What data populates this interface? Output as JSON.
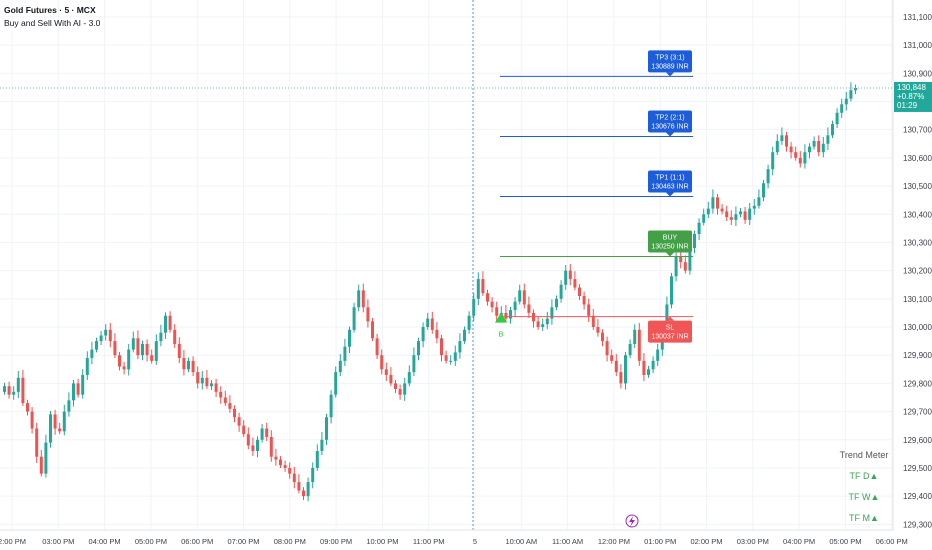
{
  "header": {
    "title": "Gold Futures · 5 · MCX",
    "indicator": "Buy and Sell With AI - 3.0"
  },
  "price_tag": {
    "price": "130,848",
    "change": "+0.87%",
    "countdown": "01:29"
  },
  "trend_meter": {
    "title": "Trend Meter",
    "rows": [
      "TF D▲",
      "TF W▲",
      "TF M▲"
    ]
  },
  "colors": {
    "up": "#26a69a",
    "down": "#ef5350",
    "tp": "#1e5dd9",
    "buy": "#43a047",
    "sl": "#f05656",
    "grid": "#f0f3fa"
  },
  "chart_data": {
    "type": "candlestick",
    "y_ticks": [
      131100,
      131000,
      130900,
      130800,
      130700,
      130600,
      130500,
      130400,
      130300,
      130200,
      130100,
      130000,
      129900,
      129800,
      129700,
      129600,
      129500,
      129400,
      129300
    ],
    "ylim": [
      129280,
      131160
    ],
    "x_ticks": [
      "2:00 PM",
      "03:00 PM",
      "04:00 PM",
      "05:00 PM",
      "06:00 PM",
      "07:00 PM",
      "08:00 PM",
      "09:00 PM",
      "10:00 PM",
      "11:00 PM",
      "5",
      "10:00 AM",
      "11:00 AM",
      "12:00 PM",
      "01:00 PM",
      "02:00 PM",
      "03:00 PM",
      "04:00 PM",
      "05:00 PM",
      "06:00 PM"
    ],
    "levels": [
      {
        "name": "TP3",
        "label": "TP3 (3:1)",
        "price_label": "130889 INR",
        "value": 130889,
        "kind": "tp"
      },
      {
        "name": "TP2",
        "label": "TP2 (2:1)",
        "price_label": "130676 INR",
        "value": 130676,
        "kind": "tp"
      },
      {
        "name": "TP1",
        "label": "TP1 (1:1)",
        "price_label": "130463 INR",
        "value": 130463,
        "kind": "tp"
      },
      {
        "name": "BUY",
        "label": "BUY",
        "price_label": "130250 INR",
        "value": 130250,
        "kind": "buy"
      },
      {
        "name": "SL",
        "label": "SL",
        "price_label": "130037 INR",
        "value": 130037,
        "kind": "sl"
      }
    ],
    "signal": {
      "label": "B",
      "value": 130030
    },
    "current_price": 130848,
    "closes": [
      129790,
      129760,
      129770,
      129820,
      129730,
      129700,
      129640,
      129540,
      129480,
      129590,
      129690,
      129640,
      129630,
      129700,
      129740,
      129800,
      129760,
      129830,
      129890,
      129920,
      129950,
      129970,
      129990,
      129950,
      129900,
      129860,
      129850,
      129920,
      129960,
      129900,
      129940,
      129900,
      129880,
      129950,
      129980,
      130040,
      129990,
      129940,
      129890,
      129850,
      129880,
      129840,
      129800,
      129820,
      129790,
      129800,
      129770,
      129750,
      129730,
      129710,
      129680,
      129650,
      129620,
      129580,
      129560,
      129600,
      129640,
      129610,
      129540,
      129530,
      129510,
      129500,
      129480,
      129450,
      129420,
      129400,
      129450,
      129500,
      129560,
      129600,
      129680,
      129760,
      129840,
      129880,
      129930,
      129990,
      130070,
      130130,
      130070,
      130020,
      129960,
      129900,
      129850,
      129830,
      129800,
      129780,
      129760,
      129800,
      129840,
      129900,
      129950,
      130000,
      130030,
      129990,
      129960,
      129900,
      129880,
      129880,
      129910,
      129950,
      129990,
      130040,
      130100,
      130170,
      130120,
      130090,
      130070,
      130040,
      130050,
      130030,
      130060,
      130090,
      130130,
      130080,
      130050,
      130020,
      130000,
      130010,
      130030,
      130070,
      130100,
      130150,
      130200,
      130170,
      130140,
      130110,
      130080,
      130040,
      130000,
      129980,
      129950,
      129900,
      129880,
      129840,
      129800,
      129900,
      129940,
      129990,
      129880,
      129830,
      129850,
      129880,
      129920,
      129970,
      130080,
      130180,
      130250,
      130230,
      130200,
      130280,
      130330,
      130370,
      130400,
      130420,
      130460,
      130420,
      130410,
      130390,
      130380,
      130400,
      130410,
      130380,
      130420,
      130430,
      130460,
      130510,
      130560,
      130620,
      130660,
      130680,
      130640,
      130620,
      130600,
      130580,
      130620,
      130640,
      130660,
      130620,
      130650,
      130680,
      130720,
      130760,
      130790,
      130810,
      130840,
      130848
    ]
  }
}
